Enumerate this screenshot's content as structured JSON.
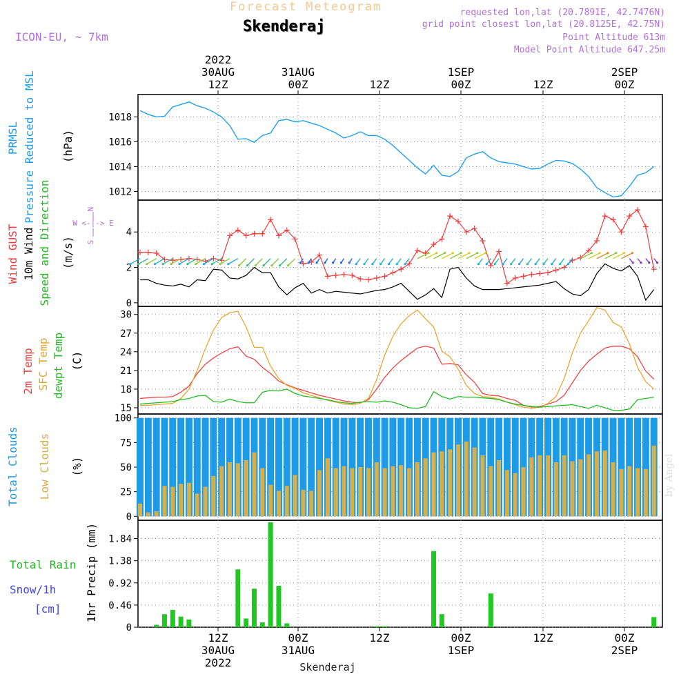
{
  "header": {
    "product": "Forecast Meteogram",
    "location": "Skenderaj",
    "model": "ICON-EU, ~ 7km",
    "requested": "requested lon,lat (20.7891E, 42.7476N)",
    "grid_point": "grid point closest lon,lat (20.8125E, 42.75N)",
    "point_altitude": "Point Altitude 613m",
    "model_altitude": "Model Point Altitude 647.25m",
    "credit": "by Angel",
    "footer": "Skenderaj"
  },
  "colors": {
    "pressure": "#1ea0f0",
    "gust": "#f03c3c",
    "wind": "#000000",
    "direction_label": "#22bb22",
    "compass": "#b070d8",
    "temp2m": "#ee4444",
    "sfc": "#e6a830",
    "dewpt": "#22bb22",
    "total_clouds": "#1e9be8",
    "low_clouds": "#d6ae4a",
    "precip": "#22c822",
    "rain_label": "#22bb22",
    "snow_label": "#4444ee"
  },
  "axis_labels": {
    "top_time": [
      {
        "hour": "12Z",
        "date": "30AUG",
        "year": "2022"
      },
      {
        "hour": "00Z",
        "date": "31AUG",
        "year": ""
      },
      {
        "hour": "12Z",
        "date": "",
        "year": ""
      },
      {
        "hour": "00Z",
        "date": "1SEP",
        "year": ""
      },
      {
        "hour": "12Z",
        "date": "",
        "year": ""
      },
      {
        "hour": "00Z",
        "date": "2SEP",
        "year": ""
      }
    ],
    "bottom_time": [
      {
        "hour": "12Z",
        "date": "30AUG",
        "year": "2022"
      },
      {
        "hour": "00Z",
        "date": "31AUG",
        "year": ""
      },
      {
        "hour": "12Z",
        "date": "",
        "year": ""
      },
      {
        "hour": "00Z",
        "date": "1SEP",
        "year": ""
      },
      {
        "hour": "12Z",
        "date": "",
        "year": ""
      },
      {
        "hour": "00Z",
        "date": "2SEP",
        "year": ""
      }
    ]
  },
  "panel_labels": {
    "pressure": {
      "line1": "PRMSL",
      "line2": "Pressure Reduced to MSL",
      "unit": "(hPa)"
    },
    "wind": {
      "gust": "Wind GUST",
      "wind": "10m Wind",
      "dir": "Speed and Direction",
      "unit": "(m/s)",
      "compass_n": "N",
      "compass_s": "S",
      "compass_ew": "W <-|-> E"
    },
    "temp": {
      "t2m": "2m Temp",
      "sfc": "SFC Temp",
      "dew": "dewpt Temp",
      "unit": "(C)"
    },
    "clouds": {
      "total": "Total Clouds",
      "low": "Low Clouds",
      "unit": "(%)"
    },
    "precip": {
      "rain": "Total  Rain",
      "snow": "Snow/1h",
      "snow_unit": "[cm]",
      "unit": "1hr Precip (mm)"
    }
  },
  "chart_data": [
    {
      "type": "line",
      "name": "pressure",
      "x_hours": [
        0,
        1,
        2,
        3,
        4,
        5,
        6,
        7,
        8,
        9,
        10,
        11,
        12,
        13,
        14,
        15,
        16,
        17,
        18,
        19,
        20,
        21,
        22,
        23,
        24,
        25,
        26,
        27,
        28,
        29,
        30,
        31,
        32,
        33,
        34,
        35,
        36,
        37,
        38,
        39,
        40,
        41,
        42,
        43,
        44,
        45,
        46,
        47,
        48,
        49,
        50,
        51,
        52,
        53,
        54,
        55,
        56,
        57,
        58,
        59,
        60,
        61,
        62,
        63
      ],
      "ylim": [
        1011.3,
        1019.8
      ],
      "yticks": [
        1012,
        1014,
        1016,
        1018
      ],
      "series": [
        {
          "values": [
            1018.5,
            1018.2,
            1018.0,
            1018.05,
            1018.8,
            1019.0,
            1019.2,
            1018.9,
            1018.7,
            1018.4,
            1018.0,
            1017.3,
            1016.2,
            1016.25,
            1015.95,
            1016.5,
            1016.7,
            1017.7,
            1017.8,
            1017.6,
            1017.7,
            1017.5,
            1017.3,
            1017.0,
            1016.7,
            1016.3,
            1016.5,
            1016.8,
            1016.5,
            1016.5,
            1016.2,
            1015.7,
            1015.1,
            1014.5,
            1013.9,
            1013.4,
            1014.1,
            1013.3,
            1013.2,
            1013.6,
            1014.7,
            1015.0,
            1015.2,
            1014.7,
            1014.4,
            1014.3,
            1014.2,
            1014.0,
            1013.8,
            1013.85,
            1014.2,
            1014.5,
            1014.45,
            1014.25,
            1013.8,
            1013.2,
            1012.3,
            1011.9,
            1011.55,
            1011.65,
            1012.4,
            1013.3,
            1013.5,
            1014.0
          ]
        }
      ]
    },
    {
      "type": "line",
      "name": "wind",
      "x_hours": [
        0,
        1,
        2,
        3,
        4,
        5,
        6,
        7,
        8,
        9,
        10,
        11,
        12,
        13,
        14,
        15,
        16,
        17,
        18,
        19,
        20,
        21,
        22,
        23,
        24,
        25,
        26,
        27,
        28,
        29,
        30,
        31,
        32,
        33,
        34,
        35,
        36,
        37,
        38,
        39,
        40,
        41,
        42,
        43,
        44,
        45,
        46,
        47,
        48,
        49,
        50,
        51,
        52,
        53,
        54,
        55,
        56,
        57,
        58,
        59,
        60,
        61,
        62,
        63
      ],
      "ylim": [
        -0.2,
        5.8
      ],
      "yticks": [
        0,
        2,
        4
      ],
      "series": [
        {
          "name": "Wind GUST",
          "values": [
            2.85,
            2.85,
            2.8,
            2.45,
            2.4,
            2.45,
            2.5,
            2.45,
            2.35,
            2.5,
            2.4,
            3.8,
            4.1,
            3.8,
            3.9,
            3.9,
            4.7,
            3.8,
            4.1,
            3.6,
            2.2,
            2.3,
            2.7,
            1.5,
            1.55,
            1.6,
            1.55,
            1.35,
            1.3,
            1.4,
            1.5,
            1.7,
            1.9,
            2.2,
            2.95,
            2.8,
            3.3,
            3.6,
            4.9,
            4.6,
            4.0,
            4.2,
            3.5,
            2.1,
            2.9,
            1.1,
            1.4,
            1.5,
            1.6,
            1.65,
            1.7,
            1.85,
            2.0,
            2.4,
            2.55,
            2.95,
            3.5,
            4.9,
            4.7,
            4.0,
            4.9,
            5.25,
            4.3,
            1.9
          ]
        },
        {
          "name": "10m Wind",
          "values": [
            1.3,
            1.3,
            1.1,
            1.0,
            0.95,
            1.05,
            0.9,
            1.3,
            1.25,
            1.9,
            1.85,
            1.4,
            1.35,
            1.55,
            2.0,
            1.7,
            1.7,
            0.9,
            0.45,
            0.85,
            1.1,
            0.55,
            0.75,
            0.55,
            0.65,
            0.6,
            0.55,
            0.5,
            0.6,
            0.7,
            0.75,
            0.9,
            1.1,
            0.65,
            0.2,
            0.45,
            0.8,
            0.3,
            1.9,
            2.0,
            1.4,
            0.95,
            0.75,
            0.75,
            0.75,
            0.8,
            0.85,
            0.9,
            0.95,
            1.0,
            1.1,
            1.2,
            0.8,
            0.5,
            0.4,
            0.75,
            1.65,
            2.2,
            1.95,
            1.8,
            2.1,
            1.5,
            0.15,
            0.75
          ]
        }
      ]
    },
    {
      "type": "line",
      "name": "temperature",
      "x_hours": [
        0,
        1,
        2,
        3,
        4,
        5,
        6,
        7,
        8,
        9,
        10,
        11,
        12,
        13,
        14,
        15,
        16,
        17,
        18,
        19,
        20,
        21,
        22,
        23,
        24,
        25,
        26,
        27,
        28,
        29,
        30,
        31,
        32,
        33,
        34,
        35,
        36,
        37,
        38,
        39,
        40,
        41,
        42,
        43,
        44,
        45,
        46,
        47,
        48,
        49,
        50,
        51,
        52,
        53,
        54,
        55,
        56,
        57,
        58,
        59,
        60,
        61,
        62,
        63
      ],
      "ylim": [
        14.0,
        31.3
      ],
      "yticks": [
        15,
        18,
        21,
        24,
        27,
        30
      ],
      "series": [
        {
          "name": "2m Temp",
          "values": [
            16.5,
            16.6,
            16.7,
            16.7,
            16.8,
            17.5,
            18.5,
            20.5,
            22.0,
            23.0,
            23.8,
            24.5,
            24.8,
            23.3,
            22.8,
            21.5,
            20.5,
            19.3,
            18.7,
            18.2,
            17.8,
            17.4,
            17.0,
            16.7,
            16.4,
            16.1,
            15.9,
            15.8,
            16.3,
            18.0,
            19.9,
            21.4,
            22.6,
            23.6,
            24.6,
            24.9,
            24.6,
            22.0,
            22.1,
            21.9,
            20.3,
            19.1,
            17.3,
            17.0,
            16.9,
            16.5,
            16.2,
            15.4,
            15.1,
            15.2,
            15.6,
            16.0,
            17.0,
            19.0,
            21.0,
            22.5,
            23.6,
            24.6,
            24.9,
            24.9,
            24.5,
            23.2,
            20.9,
            19.6
          ]
        },
        {
          "name": "SFC Temp",
          "values": [
            15.4,
            15.4,
            15.5,
            15.6,
            15.7,
            16.5,
            18.0,
            21.0,
            24.5,
            27.5,
            29.5,
            30.3,
            30.5,
            28.0,
            24.7,
            24.7,
            21.7,
            19.7,
            18.6,
            18.1,
            17.4,
            17.0,
            16.6,
            16.2,
            15.9,
            15.6,
            15.5,
            15.7,
            16.5,
            19.5,
            23.5,
            26.5,
            28.5,
            29.8,
            30.7,
            29.3,
            28.0,
            24.1,
            23.2,
            21.2,
            18.6,
            17.3,
            16.8,
            16.7,
            16.4,
            15.9,
            15.5,
            15.1,
            14.9,
            15.1,
            15.7,
            16.8,
            19.7,
            23.8,
            27.0,
            29.0,
            31.1,
            30.7,
            28.7,
            28.0,
            25.3,
            21.5,
            19.2,
            18.0
          ]
        },
        {
          "name": "dewpt Temp",
          "values": [
            15.6,
            15.7,
            15.8,
            15.9,
            16.0,
            16.3,
            16.5,
            16.9,
            17.0,
            16.0,
            15.9,
            16.4,
            16.0,
            15.8,
            15.8,
            17.5,
            17.8,
            17.7,
            18.0,
            17.3,
            16.9,
            16.7,
            16.5,
            16.3,
            16.0,
            15.8,
            15.7,
            15.9,
            16.0,
            15.9,
            16.1,
            15.9,
            15.5,
            15.0,
            14.9,
            15.2,
            17.6,
            16.8,
            16.4,
            16.8,
            16.7,
            16.7,
            16.6,
            16.5,
            16.3,
            15.9,
            15.6,
            15.4,
            15.2,
            15.1,
            15.2,
            15.3,
            15.4,
            15.5,
            15.2,
            14.9,
            15.4,
            15.0,
            14.6,
            14.6,
            14.8,
            16.3,
            16.5,
            16.7
          ]
        }
      ]
    },
    {
      "type": "bar",
      "name": "clouds",
      "x_hours": [
        0,
        1,
        2,
        3,
        4,
        5,
        6,
        7,
        8,
        9,
        10,
        11,
        12,
        13,
        14,
        15,
        16,
        17,
        18,
        19,
        20,
        21,
        22,
        23,
        24,
        25,
        26,
        27,
        28,
        29,
        30,
        31,
        32,
        33,
        34,
        35,
        36,
        37,
        38,
        39,
        40,
        41,
        42,
        43,
        44,
        45,
        46,
        47,
        48,
        49,
        50,
        51,
        52,
        53,
        54,
        55,
        56,
        57,
        58,
        59,
        60,
        61,
        62,
        63
      ],
      "ylim": [
        -4,
        104
      ],
      "yticks": [
        0,
        25,
        50,
        75,
        100
      ],
      "series": [
        {
          "name": "Total Clouds",
          "values": [
            100,
            100,
            100,
            100,
            100,
            100,
            100,
            100,
            100,
            100,
            100,
            100,
            100,
            100,
            100,
            100,
            100,
            100,
            100,
            100,
            100,
            100,
            100,
            100,
            100,
            100,
            100,
            100,
            100,
            100,
            100,
            100,
            100,
            100,
            100,
            100,
            100,
            100,
            100,
            100,
            100,
            100,
            100,
            100,
            100,
            100,
            100,
            100,
            100,
            100,
            100,
            100,
            100,
            100,
            100,
            100,
            100,
            100,
            100,
            100,
            100,
            100,
            100,
            100
          ]
        },
        {
          "name": "Low Clouds",
          "values": [
            13,
            4,
            5,
            31,
            30,
            33,
            34,
            23,
            30,
            41,
            51,
            55,
            54,
            57,
            65,
            49,
            32,
            26,
            31,
            42,
            27,
            26,
            47,
            59,
            49,
            51,
            49,
            50,
            49,
            55,
            49,
            51,
            52,
            49,
            55,
            59,
            65,
            66,
            68,
            73,
            76,
            70,
            62,
            51,
            57,
            47,
            44,
            50,
            60,
            62,
            62,
            55,
            62,
            56,
            58,
            63,
            66,
            67,
            55,
            48,
            51,
            49,
            48,
            72
          ]
        }
      ]
    },
    {
      "type": "bar",
      "name": "precipitation",
      "x_hours": [
        0,
        1,
        2,
        3,
        4,
        5,
        6,
        7,
        8,
        9,
        10,
        11,
        12,
        13,
        14,
        15,
        16,
        17,
        18,
        19,
        20,
        21,
        22,
        23,
        24,
        25,
        26,
        27,
        28,
        29,
        30,
        31,
        32,
        33,
        34,
        35,
        36,
        37,
        38,
        39,
        40,
        41,
        42,
        43,
        44,
        45,
        46,
        47,
        48,
        49,
        50,
        51,
        52,
        53,
        54,
        55,
        56,
        57,
        58,
        59,
        60,
        61,
        62,
        63
      ],
      "ylim": [
        0,
        2.22
      ],
      "yticks": [
        0,
        0.46,
        0.92,
        1.38,
        1.84
      ],
      "series": [
        {
          "name": "Total Rain",
          "values": [
            0,
            0,
            0.05,
            0.27,
            0.36,
            0.22,
            0.16,
            0,
            0,
            0,
            0,
            0,
            1.2,
            0.18,
            0.8,
            0.1,
            2.18,
            0.86,
            0.08,
            0,
            0,
            0,
            0,
            0,
            0,
            0,
            0,
            0,
            0,
            0.02,
            0.02,
            0,
            0,
            0,
            0,
            0,
            1.58,
            0.27,
            0,
            0,
            0,
            0,
            0,
            0.7,
            0,
            0,
            0,
            0,
            0,
            0,
            0,
            0,
            0,
            0,
            0,
            0,
            0,
            0,
            0,
            0,
            0,
            0,
            0,
            0.21
          ]
        }
      ]
    }
  ]
}
